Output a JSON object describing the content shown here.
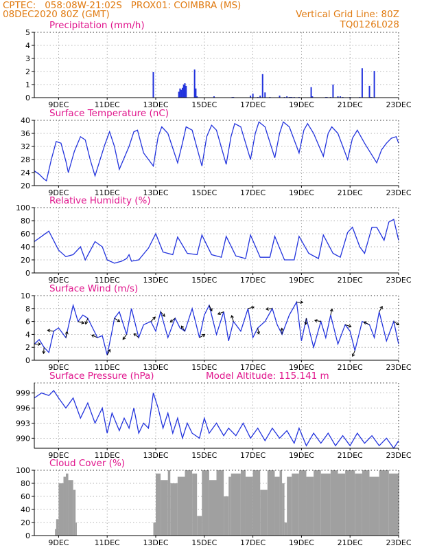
{
  "header": {
    "line1": "CPTEC:   058:08W-21:02S   PROX01: COIMBRA (MS)",
    "line2": "08DEC2020 80Z (GMT)",
    "grid_note": "Vertical Grid Line: 80Z",
    "code": "TQ0126L028"
  },
  "colors": {
    "header": "#e07a10",
    "title": "#e0148c",
    "line": "#2233dd",
    "bar": "#2233dd",
    "cloud": "#a0a0a0",
    "axis": "#000000",
    "grid": "#9a9a9a"
  },
  "x_axis": {
    "start_day": 8,
    "end_day": 23,
    "tick_labels": [
      "9DEC",
      "11DEC",
      "13DEC",
      "15DEC",
      "17DEC",
      "19DEC",
      "21DEC",
      "23DEC"
    ],
    "tick_days": [
      9,
      11,
      13,
      15,
      17,
      19,
      21,
      23
    ]
  },
  "extra_labels": {
    "model_altitude": "Model Altitude: 115.141 m"
  },
  "chart_data": [
    {
      "id": "precip",
      "type": "bar",
      "title": "Precipitation (mm/h)",
      "ylim": [
        0,
        5
      ],
      "yticks": [
        0,
        1,
        2,
        3,
        4,
        5
      ],
      "grid": true,
      "x": [
        12.9,
        13.95,
        14.0,
        14.05,
        14.1,
        14.15,
        14.2,
        14.25,
        14.6,
        14.65,
        14.7,
        15.4,
        16.15,
        16.2,
        16.9,
        17.0,
        17.2,
        17.3,
        17.4,
        17.5,
        17.7,
        18.1,
        18.3,
        18.4,
        18.5,
        18.55,
        18.6,
        18.7,
        18.9,
        19.4,
        19.45,
        20.0,
        20.05,
        20.2,
        20.3,
        20.5,
        20.6,
        20.7,
        21.0,
        21.4,
        21.5,
        21.8,
        21.85,
        21.9,
        22.0
      ],
      "values": [
        1.95,
        0.45,
        0.7,
        0.6,
        0.75,
        1.0,
        1.1,
        0.9,
        2.15,
        0.7,
        0.1,
        0.1,
        0.05,
        0.05,
        0.15,
        0.3,
        0.05,
        0.15,
        1.8,
        0.4,
        0.05,
        0.15,
        0.05,
        0.1,
        0.05,
        0.05,
        0.05,
        0.05,
        0.05,
        0.8,
        0.1,
        0.05,
        0.05,
        0.05,
        1.0,
        0.1,
        0.1,
        0.05,
        0.05,
        0.05,
        2.25,
        0.9,
        0.05,
        0.05,
        2.05
      ]
    },
    {
      "id": "temp",
      "type": "line",
      "title": "Surface Temperature (nC)",
      "ylim": [
        20,
        40
      ],
      "yticks": [
        20,
        24,
        28,
        32,
        36,
        40
      ],
      "grid": true,
      "x": [
        8.0,
        8.2,
        8.4,
        8.5,
        8.7,
        8.9,
        9.1,
        9.3,
        9.4,
        9.65,
        9.9,
        10.1,
        10.3,
        10.5,
        10.9,
        11.1,
        11.3,
        11.5,
        11.9,
        12.1,
        12.25,
        12.5,
        12.9,
        13.1,
        13.25,
        13.5,
        13.9,
        14.1,
        14.25,
        14.5,
        14.9,
        15.1,
        15.3,
        15.5,
        15.9,
        16.1,
        16.25,
        16.5,
        16.9,
        17.1,
        17.25,
        17.5,
        17.9,
        18.1,
        18.25,
        18.5,
        18.9,
        19.1,
        19.25,
        19.5,
        19.9,
        20.1,
        20.25,
        20.5,
        20.9,
        21.1,
        21.3,
        21.6,
        22.1,
        22.3,
        22.5,
        22.7,
        22.9,
        23.0
      ],
      "values": [
        24.5,
        23.5,
        22,
        21.5,
        28,
        33.5,
        33,
        27.5,
        24,
        30.5,
        35,
        34,
        28,
        23,
        32.5,
        36.5,
        32,
        25,
        32,
        36.5,
        37,
        30,
        26,
        35,
        38,
        36,
        27,
        33,
        38,
        37,
        26,
        35,
        38.5,
        37,
        26.5,
        35,
        39,
        38,
        28,
        36,
        39.5,
        38,
        28.5,
        36,
        39.5,
        38,
        30,
        37,
        39,
        36,
        29,
        36,
        38,
        36,
        28,
        34.5,
        37,
        33,
        27,
        31,
        33,
        34.5,
        35,
        33
      ]
    },
    {
      "id": "rh",
      "type": "line",
      "title": "Relative Humidity (%)",
      "ylim": [
        0,
        100
      ],
      "yticks": [
        0,
        20,
        40,
        60,
        80,
        100
      ],
      "grid": true,
      "x": [
        8.0,
        8.3,
        8.6,
        9.0,
        9.3,
        9.6,
        9.9,
        10.1,
        10.5,
        10.8,
        11.0,
        11.3,
        11.6,
        11.8,
        11.9,
        12.0,
        12.3,
        12.7,
        13.0,
        13.3,
        13.7,
        13.9,
        14.3,
        14.7,
        14.9,
        15.3,
        15.7,
        15.9,
        16.3,
        16.7,
        16.9,
        17.3,
        17.7,
        17.9,
        18.3,
        18.7,
        18.9,
        19.3,
        19.7,
        19.9,
        20.3,
        20.6,
        20.9,
        21.1,
        21.4,
        21.6,
        21.9,
        22.1,
        22.4,
        22.6,
        22.8,
        23.0
      ],
      "values": [
        48,
        56,
        64,
        35,
        25,
        28,
        40,
        20,
        48,
        40,
        20,
        15,
        18,
        22,
        28,
        18,
        20,
        38,
        60,
        32,
        28,
        55,
        30,
        28,
        58,
        28,
        24,
        56,
        26,
        22,
        58,
        24,
        24,
        56,
        20,
        20,
        56,
        30,
        22,
        58,
        30,
        24,
        62,
        70,
        40,
        30,
        70,
        70,
        50,
        78,
        82,
        50
      ]
    },
    {
      "id": "wind",
      "type": "line",
      "title": "Surface Wind (m/s)",
      "ylim": [
        0,
        10
      ],
      "yticks": [
        0,
        2,
        4,
        6,
        8,
        10
      ],
      "grid": true,
      "x": [
        8.0,
        8.2,
        8.4,
        8.6,
        8.8,
        9.0,
        9.3,
        9.6,
        9.8,
        10.0,
        10.2,
        10.4,
        10.6,
        10.8,
        11.0,
        11.2,
        11.3,
        11.5,
        11.8,
        12.0,
        12.3,
        12.5,
        12.8,
        13.0,
        13.2,
        13.5,
        13.8,
        14.0,
        14.2,
        14.5,
        14.8,
        15.0,
        15.2,
        15.5,
        15.8,
        16.0,
        16.2,
        16.5,
        16.8,
        17.0,
        17.2,
        17.5,
        17.8,
        18.0,
        18.2,
        18.5,
        18.8,
        19.0,
        19.2,
        19.5,
        19.8,
        20.0,
        20.2,
        20.5,
        20.8,
        21.0,
        21.2,
        21.5,
        21.8,
        22.0,
        22.2,
        22.5,
        22.8,
        23.0
      ],
      "values": [
        2.5,
        3.2,
        2.0,
        1.2,
        4.5,
        5.0,
        3.5,
        8.5,
        6.0,
        7.0,
        6.5,
        5.0,
        3.5,
        3.8,
        0.8,
        4.5,
        6.5,
        7.5,
        4.0,
        8.0,
        3.5,
        5.5,
        6.0,
        4.5,
        7.5,
        3.5,
        6.5,
        5.0,
        4.5,
        8.0,
        3.5,
        7.0,
        8.5,
        4.0,
        7.5,
        3.0,
        6.0,
        4.5,
        8.0,
        3.5,
        5.0,
        6.0,
        8.0,
        5.5,
        4.0,
        7.0,
        9.0,
        3.0,
        6.5,
        2.0,
        6.0,
        3.5,
        7.0,
        2.5,
        5.5,
        4.5,
        1.5,
        6.0,
        5.5,
        3.5,
        7.5,
        3.0,
        6.0,
        2.5
      ]
    },
    {
      "id": "pressure",
      "type": "line",
      "title": "Surface Pressure (hPa)",
      "ylim": [
        988,
        1001
      ],
      "yticks": [
        990,
        993,
        996,
        999
      ],
      "grid": true,
      "x": [
        8.0,
        8.3,
        8.6,
        8.8,
        9.0,
        9.3,
        9.6,
        9.9,
        10.2,
        10.5,
        10.8,
        11.0,
        11.2,
        11.5,
        11.7,
        11.9,
        12.1,
        12.3,
        12.5,
        12.7,
        12.9,
        13.1,
        13.3,
        13.5,
        13.7,
        13.9,
        14.1,
        14.3,
        14.5,
        14.8,
        15.0,
        15.2,
        15.5,
        15.8,
        16.0,
        16.3,
        16.6,
        16.9,
        17.2,
        17.5,
        17.8,
        18.1,
        18.4,
        18.7,
        18.9,
        19.2,
        19.5,
        19.8,
        20.1,
        20.4,
        20.7,
        21.0,
        21.3,
        21.6,
        21.9,
        22.2,
        22.5,
        22.8,
        23.0
      ],
      "values": [
        998,
        999,
        998.5,
        999.5,
        998,
        996,
        998,
        994,
        997,
        993,
        996,
        991,
        995,
        991.5,
        994,
        992,
        996,
        991,
        993,
        992,
        999,
        996,
        992,
        995,
        991,
        994,
        990,
        993,
        991,
        990,
        994,
        991,
        993,
        990.5,
        992,
        990.5,
        993,
        990,
        992,
        989.5,
        992,
        990,
        991.5,
        989,
        992,
        988.5,
        991,
        989,
        991,
        988.5,
        990.5,
        988.5,
        991,
        989,
        990.5,
        988.5,
        990,
        988,
        989.5
      ]
    },
    {
      "id": "cloud",
      "type": "area",
      "title": "Cloud Cover (%)",
      "ylim": [
        0,
        100
      ],
      "yticks": [
        0,
        20,
        40,
        60,
        80,
        100
      ],
      "grid": true,
      "x": [
        8.0,
        8.8,
        8.85,
        8.9,
        9.0,
        9.2,
        9.3,
        9.4,
        9.6,
        9.7,
        9.75,
        11.5,
        12.9,
        13.0,
        13.2,
        13.5,
        13.6,
        13.9,
        14.2,
        14.5,
        14.7,
        14.9,
        15.2,
        15.5,
        15.8,
        16.0,
        16.1,
        16.5,
        16.7,
        17.0,
        17.3,
        17.6,
        17.9,
        18.1,
        18.2,
        18.3,
        18.4,
        18.6,
        18.9,
        19.2,
        19.5,
        19.8,
        20.2,
        20.5,
        20.8,
        21.2,
        21.5,
        21.8,
        22.2,
        22.6,
        23.0
      ],
      "values": [
        0,
        0,
        10,
        25,
        80,
        90,
        95,
        85,
        70,
        20,
        0,
        0,
        20,
        95,
        85,
        100,
        80,
        90,
        100,
        95,
        30,
        100,
        85,
        100,
        60,
        90,
        95,
        100,
        90,
        100,
        70,
        100,
        90,
        100,
        80,
        20,
        90,
        95,
        100,
        90,
        100,
        95,
        100,
        95,
        100,
        95,
        100,
        90,
        100,
        95,
        100
      ]
    }
  ]
}
